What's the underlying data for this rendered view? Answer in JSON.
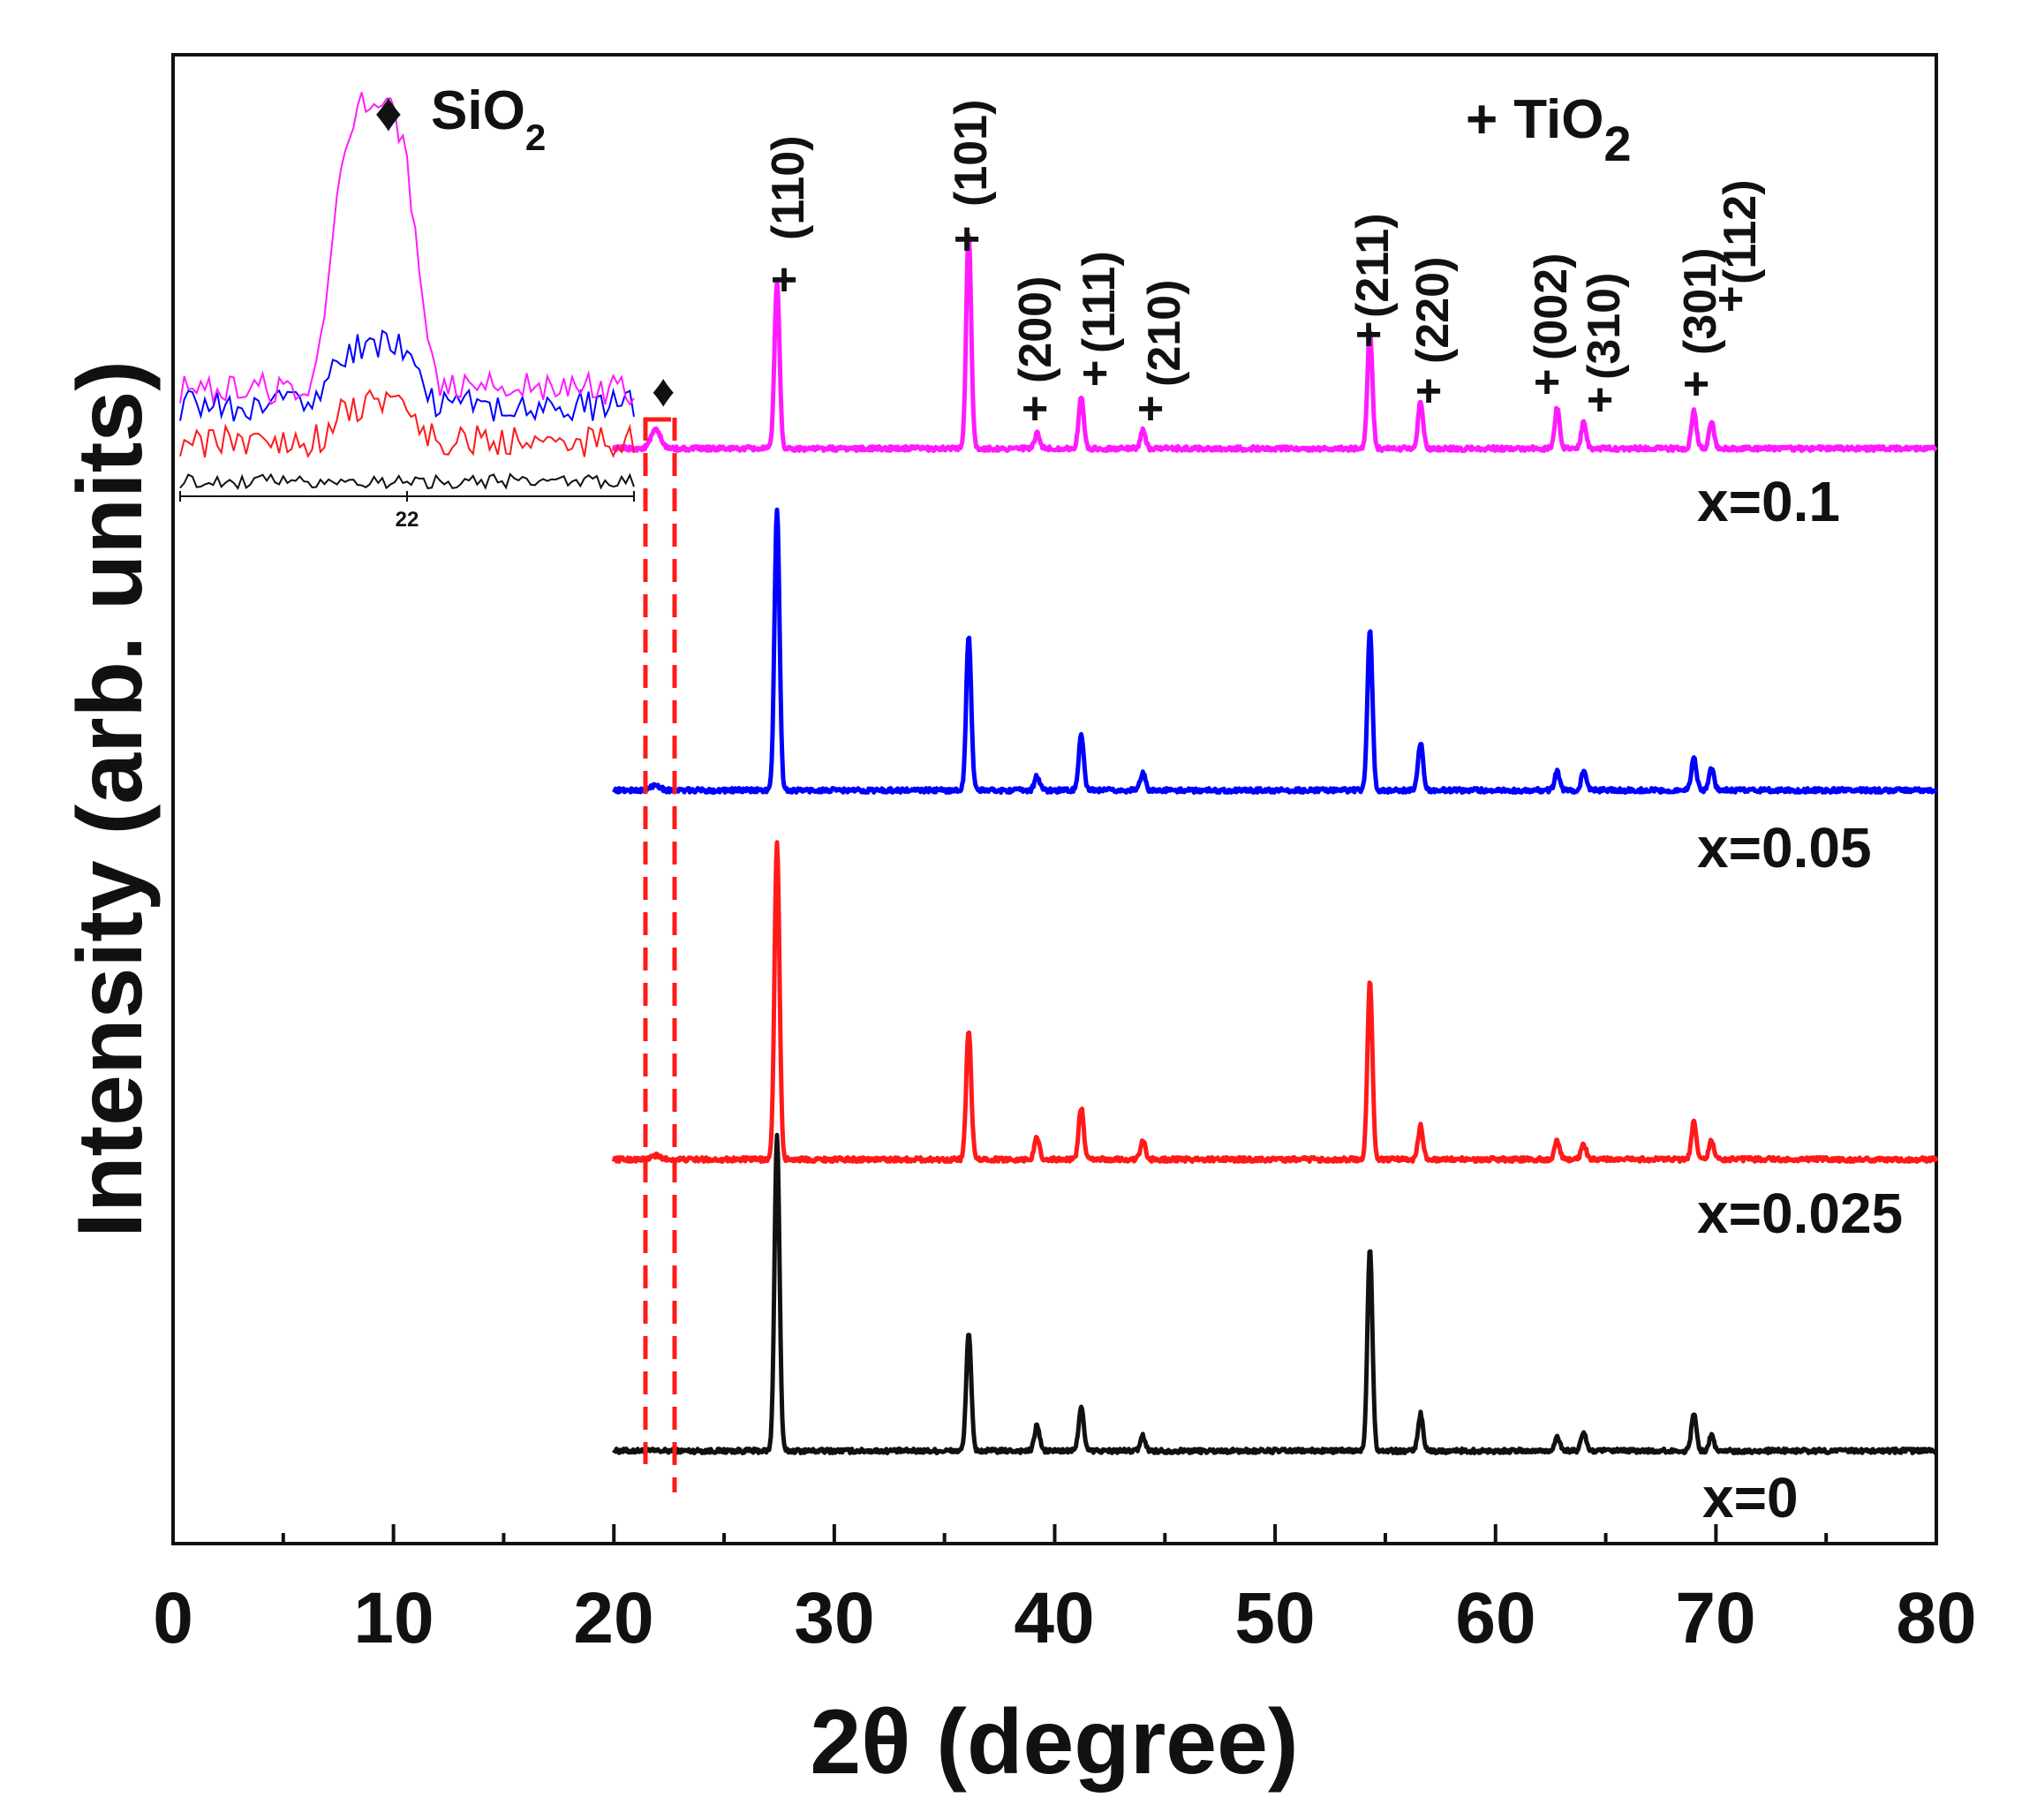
{
  "chart_data": {
    "type": "line",
    "title": "",
    "xlabel": "2θ (degree)",
    "ylabel": "Intensity (arb. units)",
    "xlim": [
      0,
      80
    ],
    "x_ticks": [
      "0",
      "10",
      "20",
      "30",
      "40",
      "50",
      "60",
      "70",
      "80"
    ],
    "series": [
      {
        "name": "x=0",
        "color": "#111111",
        "offset": 0.0,
        "scale": 1.0
      },
      {
        "name": "x=0.025",
        "color": "#ff1a1a",
        "offset": 0.8,
        "scale": 0.82
      },
      {
        "name": "x=0.05",
        "color": "#0000ff",
        "offset": 1.64,
        "scale": 0.94
      },
      {
        "name": "x=0.1",
        "color": "#ff1aff",
        "offset": 2.45,
        "scale": 0.78
      }
    ],
    "peaks": [
      {
        "two_theta": 27.4,
        "hkl": "(110)",
        "rel": [
          0.85,
          0.85,
          0.76,
          0.45
        ]
      },
      {
        "two_theta": 36.1,
        "hkl": "(101)",
        "rel": [
          0.32,
          0.35,
          0.42,
          0.58
        ]
      },
      {
        "two_theta": 39.2,
        "hkl": "(200)",
        "rel": [
          0.07,
          0.06,
          0.04,
          0.04
        ]
      },
      {
        "two_theta": 41.2,
        "hkl": "(111)",
        "rel": [
          0.12,
          0.14,
          0.15,
          0.14
        ]
      },
      {
        "two_theta": 44.0,
        "hkl": "(210)",
        "rel": [
          0.04,
          0.05,
          0.05,
          0.05
        ]
      },
      {
        "two_theta": 54.3,
        "hkl": "(211)",
        "rel": [
          0.55,
          0.48,
          0.43,
          0.32
        ]
      },
      {
        "two_theta": 56.6,
        "hkl": "(220)",
        "rel": [
          0.1,
          0.09,
          0.13,
          0.13
        ]
      },
      {
        "two_theta": 62.8,
        "hkl": "(002)",
        "rel": [
          0.04,
          0.05,
          0.05,
          0.11
        ]
      },
      {
        "two_theta": 64.0,
        "hkl": "(310)",
        "rel": [
          0.05,
          0.04,
          0.05,
          0.07
        ]
      },
      {
        "two_theta": 69.0,
        "hkl": "(301)",
        "rel": [
          0.1,
          0.1,
          0.09,
          0.1
        ]
      },
      {
        "two_theta": 69.8,
        "hkl": "(112)",
        "rel": [
          0.04,
          0.05,
          0.06,
          0.07
        ]
      }
    ],
    "sio2_peak": {
      "two_theta": 21.9,
      "rel": [
        0.0,
        0.01,
        0.015,
        0.05
      ]
    },
    "legend": {
      "tio2_marker": "+",
      "tio2_label": "TiO",
      "sio2_marker": "♦",
      "sio2_label": "SiO",
      "subscript": "2"
    },
    "inset": {
      "tick_label": "22",
      "window": [
        21.3,
        22.7
      ]
    }
  }
}
